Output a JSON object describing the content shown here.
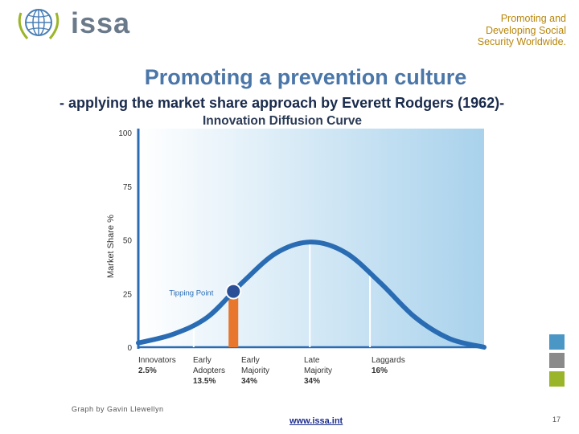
{
  "header": {
    "logo_text": "issa",
    "tagline": [
      "Promoting and",
      "Developing Social",
      "Security Worldwide."
    ]
  },
  "slide": {
    "title": "Promoting a prevention culture",
    "subtitle": "- applying the market share approach by Everett Rodgers (1962)-",
    "credit": "Graph by Gavin Llewellyn",
    "url": "www.issa.int",
    "page_number": "17"
  },
  "colors": {
    "curve": "#2a6cb3",
    "tipping_point": "#2a4f96",
    "tipping_bar": "#e8762d",
    "swatches": [
      "#4a97c6",
      "#8a8a8a",
      "#9bb52a"
    ]
  },
  "chart_data": {
    "type": "line",
    "title": "Innovation Diffusion Curve",
    "ylabel": "Market Share %",
    "ylim": [
      0,
      100
    ],
    "yticks": [
      0,
      25,
      50,
      75,
      100
    ],
    "x": [
      0,
      10,
      20,
      30,
      40,
      50,
      60,
      70,
      80,
      90,
      100
    ],
    "series": [
      {
        "values": [
          2,
          6,
          14,
          30,
          44,
          49,
          44,
          30,
          14,
          4,
          0
        ]
      }
    ],
    "segments": [
      {
        "label": "Innovators",
        "share": "2.5%"
      },
      {
        "label": "Early Adopters",
        "share": "13.5%"
      },
      {
        "label": "Early Majority",
        "share": "34%"
      },
      {
        "label": "Late Majority",
        "share": "34%"
      },
      {
        "label": "Laggards",
        "share": "16%"
      }
    ],
    "annotation": {
      "label": "Tipping Point",
      "x": 27.5,
      "y": 26
    },
    "grid": false
  }
}
